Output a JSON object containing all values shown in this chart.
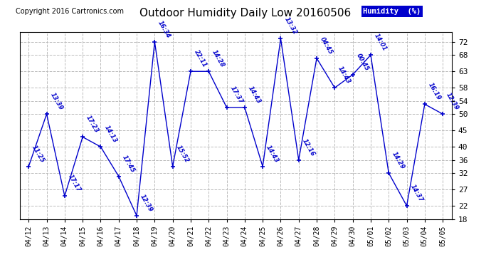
{
  "title": "Outdoor Humidity Daily Low 20160506",
  "copyright": "Copyright 2016 Cartronics.com",
  "legend_label": "Humidity  (%)",
  "ylim": [
    18,
    75
  ],
  "yticks": [
    18,
    22,
    27,
    32,
    36,
    40,
    45,
    50,
    54,
    58,
    63,
    68,
    72
  ],
  "bg_color": "#ffffff",
  "plot_color": "#0000cc",
  "grid_color": "#bbbbbb",
  "legend_bg": "#0000cc",
  "legend_fg": "#ffffff",
  "points": [
    {
      "date": "04/12",
      "value": 34,
      "time": "11:25"
    },
    {
      "date": "04/13",
      "value": 50,
      "time": "13:39"
    },
    {
      "date": "04/14",
      "value": 25,
      "time": "17:17"
    },
    {
      "date": "04/15",
      "value": 43,
      "time": "17:23"
    },
    {
      "date": "04/16",
      "value": 40,
      "time": "14:13"
    },
    {
      "date": "04/17",
      "value": 31,
      "time": "17:45"
    },
    {
      "date": "04/18",
      "value": 19,
      "time": "12:39"
    },
    {
      "date": "04/19",
      "value": 72,
      "time": "16:34"
    },
    {
      "date": "04/20",
      "value": 34,
      "time": "15:52"
    },
    {
      "date": "04/21",
      "value": 63,
      "time": "22:11"
    },
    {
      "date": "04/22",
      "value": 63,
      "time": "14:28"
    },
    {
      "date": "04/23",
      "value": 52,
      "time": "17:37"
    },
    {
      "date": "04/24",
      "value": 52,
      "time": "14:43"
    },
    {
      "date": "04/25",
      "value": 34,
      "time": "14:43"
    },
    {
      "date": "04/26",
      "value": 73,
      "time": "13:32"
    },
    {
      "date": "04/27",
      "value": 36,
      "time": "12:16"
    },
    {
      "date": "04/28",
      "value": 67,
      "time": "04:45"
    },
    {
      "date": "04/29",
      "value": 58,
      "time": "14:43"
    },
    {
      "date": "04/30",
      "value": 62,
      "time": "00:45"
    },
    {
      "date": "05/01",
      "value": 68,
      "time": "14:01"
    },
    {
      "date": "05/02",
      "value": 32,
      "time": "14:29"
    },
    {
      "date": "05/03",
      "value": 22,
      "time": "14:37"
    },
    {
      "date": "05/04",
      "value": 53,
      "time": "16:19"
    },
    {
      "date": "05/05",
      "value": 50,
      "time": "12:39"
    }
  ]
}
